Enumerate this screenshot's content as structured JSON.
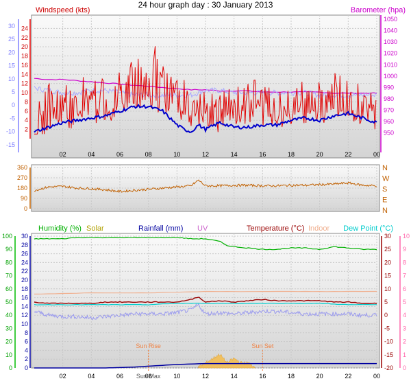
{
  "title": "24 hour graph day : 30 January 2013",
  "colors": {
    "wind": "#e00000",
    "windspeed_label": "#cc0000",
    "barometer": "#cc00cc",
    "dir": "#c06000",
    "humidity": "#00b000",
    "solar": "#b0a000",
    "rainfall": "#0000a0",
    "uv": "#cc66cc",
    "temperature": "#990000",
    "indoor": "#f0b090",
    "dewpoint": "#00cccc",
    "left_axis_a": "#8080ff",
    "left_axis_b": "#00bb00",
    "right_axis_c": "#ff66aa",
    "sun": "#f08040"
  },
  "x_ticks": [
    "02",
    "04",
    "06",
    "08",
    "10",
    "12",
    "14",
    "16",
    "18",
    "20",
    "22",
    "00"
  ],
  "chart_data": [
    {
      "type": "line",
      "name": "wind-barometer",
      "labels": {
        "left": "Windspeed (kts)",
        "right": "Barometer (hpa)"
      },
      "x_range": [
        0,
        24
      ],
      "y_left_ticks_outer": [
        30,
        25,
        20,
        15,
        10,
        5,
        0,
        -5,
        -10,
        -15
      ],
      "y_left_ticks_inner": [
        24,
        22,
        20,
        18,
        16,
        14,
        12,
        10,
        8,
        6,
        4,
        2
      ],
      "y_left_ticks_inner_extra": [
        0
      ],
      "y_left_range": [
        0,
        26
      ],
      "y_right_ticks": [
        1050,
        1040,
        1030,
        1020,
        1010,
        1000,
        990,
        980,
        970,
        960,
        950
      ],
      "y_right_range": [
        945,
        1050
      ],
      "series": [
        {
          "name": "Windspeed",
          "x": [
            0,
            0.5,
            1,
            1.5,
            2,
            2.5,
            3,
            3.5,
            4,
            4.5,
            5,
            5.5,
            6,
            6.5,
            7,
            7.5,
            8,
            8.5,
            9,
            9.5,
            10,
            10.5,
            11,
            11.5,
            12,
            12.5,
            13,
            13.5,
            14,
            14.5,
            15,
            15.5,
            16,
            16.5,
            17,
            17.5,
            18,
            18.5,
            19,
            19.5,
            20,
            20.5,
            21,
            21.5,
            22,
            22.5,
            23,
            23.5,
            24
          ],
          "y": [
            4,
            6,
            7,
            8,
            9,
            8,
            9,
            10,
            8,
            10,
            9,
            10,
            11,
            12,
            12,
            13,
            13,
            12,
            11,
            12,
            11,
            9,
            8,
            7,
            9,
            8,
            7,
            9,
            8,
            9,
            9,
            10,
            8,
            9,
            9,
            8,
            9,
            10,
            9,
            10,
            10,
            9,
            11,
            10,
            10,
            9,
            9,
            8,
            7
          ]
        },
        {
          "name": "Gust",
          "x": [
            0,
            0.5,
            1,
            1.5,
            2,
            2.5,
            3,
            3.5,
            4,
            4.5,
            5,
            5.5,
            6,
            6.5,
            7,
            7.5,
            8,
            8.5,
            9,
            9.5,
            10,
            10.5,
            11,
            11.5,
            12,
            12.5,
            13,
            13.5,
            14,
            14.5,
            15,
            15.5,
            16,
            16.5,
            17,
            17.5,
            18,
            18.5,
            19,
            19.5,
            20,
            20.5,
            21,
            21.5,
            22,
            22.5,
            23,
            23.5,
            24
          ],
          "y": [
            4,
            10,
            12,
            11,
            13,
            12,
            13,
            14,
            12,
            14,
            13,
            14,
            15,
            16,
            18,
            17,
            15,
            21,
            16,
            14,
            15,
            13,
            10,
            9,
            12,
            11,
            10,
            12,
            11,
            12,
            12,
            13,
            11,
            12,
            12,
            11,
            12,
            13,
            12,
            13,
            13,
            12,
            15,
            14,
            13,
            12,
            12,
            11,
            9
          ]
        },
        {
          "name": "Barometer",
          "axis": "right",
          "x": [
            0,
            1,
            2,
            3,
            4,
            5,
            6,
            7,
            8,
            9,
            10,
            11,
            12,
            13,
            14,
            15,
            16,
            17,
            18,
            19,
            20,
            21,
            22,
            23,
            24
          ],
          "y": [
            998,
            997,
            997,
            996,
            995,
            994,
            993,
            992,
            991,
            990,
            989,
            988,
            988,
            987,
            987,
            987,
            986,
            986,
            986,
            986,
            986,
            985,
            985,
            985,
            985
          ]
        },
        {
          "name": "Temperature (blue)",
          "x": [
            0,
            1,
            2,
            3,
            4,
            5,
            6,
            7,
            8,
            9,
            10,
            10.5,
            11,
            11.5,
            12,
            13,
            14,
            15,
            16,
            17,
            18,
            19,
            20,
            21,
            22,
            23,
            24
          ],
          "y": [
            1.5,
            2.5,
            3.5,
            4,
            4.5,
            5,
            6,
            7,
            7,
            6,
            3,
            2,
            1.5,
            3,
            2,
            3.5,
            2.5,
            2.5,
            3,
            3,
            4,
            4.5,
            4,
            5,
            5.5,
            4.5,
            3.5
          ]
        },
        {
          "name": "Windspeed (light)",
          "x": [
            0,
            1,
            2,
            3,
            4,
            5,
            6,
            7,
            8,
            9,
            10,
            11,
            12,
            13,
            14,
            15,
            16,
            17,
            18,
            19,
            20,
            21,
            22,
            23,
            24
          ],
          "y": [
            11,
            10.5,
            10,
            10,
            10.5,
            10.5,
            10,
            9.5,
            9.5,
            9.5,
            9.5,
            9.5,
            10.5,
            10.5,
            10,
            10,
            10,
            10,
            10,
            10,
            9.5,
            9.5,
            9.5,
            9.5,
            9.5
          ]
        }
      ]
    },
    {
      "type": "line",
      "name": "wind-direction",
      "x_range": [
        0,
        24
      ],
      "y_ticks": [
        360,
        270,
        180,
        90,
        0
      ],
      "y_range": [
        0,
        360
      ],
      "right_labels": [
        "N",
        "W",
        "S",
        "E",
        "N"
      ],
      "series": [
        {
          "name": "Direction",
          "x": [
            0,
            1,
            2,
            3,
            4,
            5,
            6,
            7,
            8,
            9,
            10,
            11,
            11.5,
            12,
            13,
            14,
            15,
            16,
            17,
            18,
            19,
            20,
            21,
            22,
            23,
            24
          ],
          "y": [
            160,
            190,
            195,
            180,
            175,
            165,
            150,
            160,
            170,
            180,
            190,
            200,
            250,
            200,
            200,
            205,
            205,
            200,
            200,
            205,
            205,
            210,
            215,
            225,
            205,
            200
          ]
        }
      ]
    },
    {
      "type": "line",
      "name": "temp-humidity",
      "labels": {
        "humidity": "Humidity (%)",
        "solar": "Solar",
        "rainfall": "Rainfall (mm)",
        "uv": "UV",
        "temperature": "Temperature (°C)",
        "indoor": "Indoor",
        "dewpoint": "Dew Point (°C)"
      },
      "x_range": [
        0,
        24
      ],
      "y_left_a_ticks": [
        100,
        90,
        80,
        70,
        60,
        50,
        40,
        30,
        20,
        10,
        0
      ],
      "y_left_b_ticks": [
        30,
        28,
        26,
        24,
        22,
        20,
        18,
        16,
        14,
        12,
        10,
        8,
        6,
        4,
        2,
        0
      ],
      "y_right_ticks": [
        30,
        25,
        20,
        15,
        10,
        5,
        0,
        -5,
        -10,
        -15,
        -20
      ],
      "y_right_small_ticks": [
        10,
        9,
        8,
        7,
        6,
        5,
        4,
        3,
        2,
        1,
        0
      ],
      "y_humidity_range": [
        0,
        100
      ],
      "y_temp_range": [
        -20,
        30
      ],
      "annotations": [
        "Sun Rise",
        "Sun Set",
        "Sun Max"
      ],
      "series": [
        {
          "name": "Humidity",
          "x": [
            0,
            1,
            2,
            3,
            4,
            5,
            6,
            7,
            8,
            9,
            10,
            11,
            12,
            13,
            13.5,
            14,
            15,
            16,
            17,
            18,
            19,
            20,
            21,
            22,
            23,
            24
          ],
          "y": [
            98,
            98,
            98,
            99,
            99,
            99,
            99,
            99,
            99,
            99,
            99,
            98,
            98,
            96,
            93,
            92,
            91,
            90,
            90,
            91,
            91,
            90,
            92,
            91,
            90,
            90
          ]
        },
        {
          "name": "Temperature",
          "x": [
            0,
            1,
            2,
            3,
            4,
            5,
            6,
            7,
            8,
            9,
            10,
            11,
            11.5,
            12,
            13,
            14,
            15,
            16,
            17,
            18,
            19,
            20,
            21,
            22,
            23,
            24
          ],
          "y": [
            5,
            4.5,
            4.5,
            4.5,
            4.5,
            5,
            5,
            5,
            5,
            5,
            5,
            6,
            7,
            5,
            5.5,
            5,
            5.5,
            6,
            5.5,
            5.5,
            5.5,
            5.5,
            5,
            5,
            4.5,
            4.5
          ]
        },
        {
          "name": "Dew Point",
          "x": [
            0,
            2,
            4,
            6,
            8,
            10,
            12,
            14,
            16,
            18,
            20,
            22,
            24
          ],
          "y": [
            4,
            4,
            4,
            4,
            4,
            4.5,
            4.5,
            4.5,
            4.5,
            4.5,
            4.5,
            4,
            4
          ]
        },
        {
          "name": "Indoor",
          "x": [
            0,
            4,
            8,
            12,
            16,
            20,
            24
          ],
          "y": [
            8,
            8.5,
            8.5,
            9,
            9,
            9,
            9
          ]
        },
        {
          "name": "Wind chill",
          "x": [
            0,
            1,
            2,
            3,
            4,
            5,
            6,
            7,
            8,
            9,
            10,
            11,
            11.5,
            12,
            13,
            14,
            15,
            16,
            17,
            18,
            19,
            20,
            21,
            22,
            23,
            24
          ],
          "y": [
            1.5,
            0,
            -0.5,
            -0.5,
            -1,
            -0.5,
            0,
            0.5,
            0.5,
            0.5,
            1,
            2,
            4,
            0.5,
            1,
            0.5,
            1,
            1.5,
            1.5,
            1,
            0.5,
            0.5,
            0.5,
            0.5,
            0,
            0
          ]
        },
        {
          "name": "Rainfall",
          "x": [
            0,
            3,
            5,
            7,
            8,
            9,
            10,
            11,
            12,
            13,
            14,
            15,
            16,
            17,
            18,
            19,
            20,
            21,
            22,
            23,
            24
          ],
          "y": [
            0,
            0,
            0,
            0.2,
            0.4,
            0.6,
            0.8,
            0.9,
            1.0,
            1.0,
            1.0,
            1.0,
            1.0,
            1.0,
            1.0,
            1.0,
            1.0,
            1.0,
            1.0,
            1.0,
            1.0
          ]
        },
        {
          "name": "Solar",
          "x": [
            11.5,
            12,
            12.5,
            13,
            13.5,
            14,
            14.5,
            15,
            15.5
          ],
          "y": [
            0,
            1,
            2,
            3,
            1,
            2,
            1,
            1,
            0
          ]
        }
      ]
    }
  ]
}
